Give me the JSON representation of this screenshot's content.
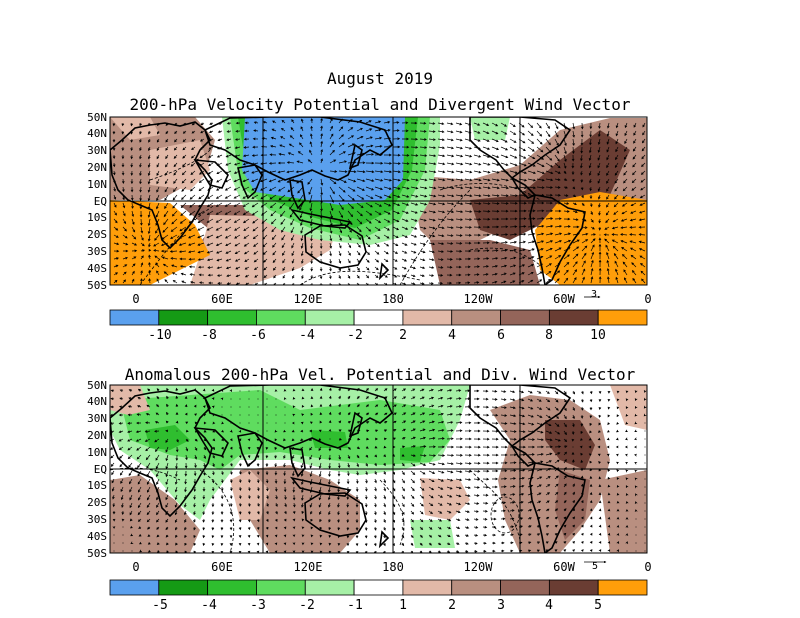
{
  "title": "August 2019",
  "panels": [
    {
      "title": "200-hPa Velocity Potential and Divergent Wind Vector",
      "lat_labels": [
        "50N",
        "40N",
        "30N",
        "20N",
        "10N",
        "EQ",
        "10S",
        "20S",
        "30S",
        "40S",
        "50S"
      ],
      "lon_labels": [
        "0",
        "60E",
        "120E",
        "180",
        "120W",
        "60W",
        "0"
      ],
      "vector_scale": "3",
      "colorbar": {
        "labels": [
          "-10",
          "-8",
          "-6",
          "-4",
          "-2",
          "2",
          "4",
          "6",
          "8",
          "10"
        ],
        "colors": [
          "#5aa0ee",
          "#159a15",
          "#2fbe2f",
          "#5fdc5f",
          "#a6f0a6",
          "#ffffff",
          "#e2b9a8",
          "#b98f80",
          "#94655a",
          "#6a3d33",
          "#ff9e0a"
        ]
      }
    },
    {
      "title": "Anomalous 200-hPa Vel. Potential and Div. Wind Vector",
      "lat_labels": [
        "50N",
        "40N",
        "30N",
        "20N",
        "10N",
        "EQ",
        "10S",
        "20S",
        "30S",
        "40S",
        "50S"
      ],
      "lon_labels": [
        "0",
        "60E",
        "120E",
        "180",
        "120W",
        "60W",
        "0"
      ],
      "vector_scale": "5",
      "colorbar": {
        "labels": [
          "-5",
          "-4",
          "-3",
          "-2",
          "-1",
          "1",
          "2",
          "3",
          "4",
          "5"
        ],
        "colors": [
          "#5aa0ee",
          "#159a15",
          "#2fbe2f",
          "#5fdc5f",
          "#a6f0a6",
          "#ffffff",
          "#e2b9a8",
          "#b98f80",
          "#94655a",
          "#6a3d33",
          "#ff9e0a"
        ]
      }
    }
  ],
  "colors": {
    "land_outline": "#000000",
    "frame": "#000000",
    "arrow": "#000000"
  }
}
